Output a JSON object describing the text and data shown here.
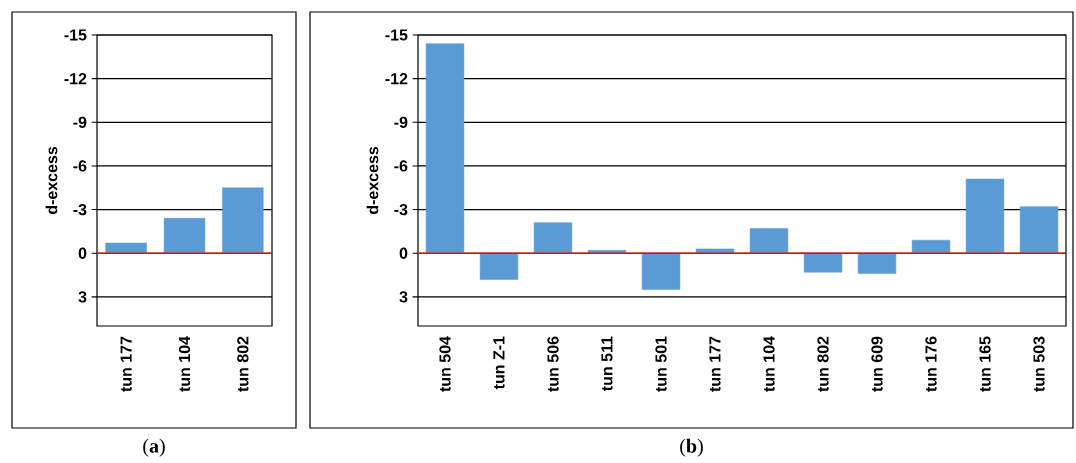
{
  "chart_data": [
    {
      "type": "bar",
      "categories": [
        "tun 177",
        "tun 104",
        "tun 802"
      ],
      "values": [
        -0.7,
        -2.4,
        -4.5
      ],
      "color": "#5b9bd5",
      "ylabel": "d-excess",
      "ylim": [
        5,
        -15
      ],
      "yticks": [
        -15,
        -12,
        -9,
        -6,
        -3,
        0,
        3
      ],
      "grid": "y",
      "ref_lines": [
        {
          "axis": "y",
          "value": 0,
          "color": "#ff0000"
        }
      ],
      "annotations": [
        "(**a**)"
      ]
    },
    {
      "type": "bar",
      "categories": [
        "tun 504",
        "tun Z-1",
        "tun 506",
        "tun 511",
        "tun 501",
        "tun 177",
        "tun 104",
        "tun 802",
        "tun 609",
        "tun 176",
        "tun 165",
        "tun 503"
      ],
      "values": [
        -14.4,
        1.8,
        -2.1,
        -0.2,
        2.5,
        -0.3,
        -1.7,
        1.3,
        1.4,
        -0.9,
        -5.1,
        -3.2
      ],
      "color": "#5b9bd5",
      "ylabel": "d-excess",
      "ylim": [
        5,
        -15
      ],
      "yticks": [
        -15,
        -12,
        -9,
        -6,
        -3,
        0,
        3
      ],
      "grid": "y",
      "ref_lines": [
        {
          "axis": "y",
          "value": 0,
          "color": "#ff0000"
        }
      ],
      "annotations": [
        "(**b**)"
      ]
    }
  ]
}
